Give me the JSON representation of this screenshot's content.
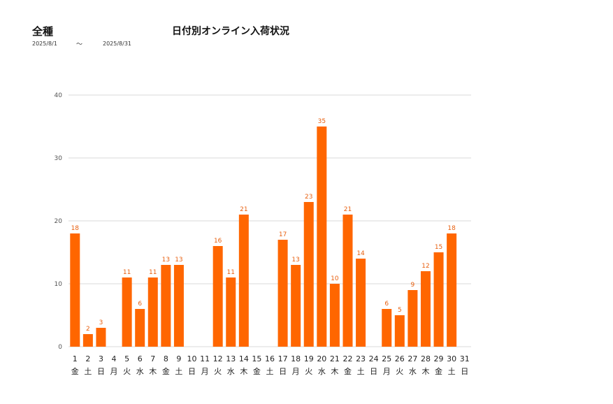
{
  "header": {
    "category": "全種",
    "title": "日付別オンライン入荷状況",
    "date_from": "2025/8/1",
    "date_separator": "～",
    "date_to": "2025/8/31"
  },
  "colors": {
    "bar": "#ff6600",
    "label": "#e86010",
    "grid": "#d9d9d9"
  },
  "chart_data": {
    "type": "bar",
    "title": "日付別オンライン入荷状況",
    "xlabel": "",
    "ylabel": "",
    "ylim": [
      0,
      40
    ],
    "yticks": [
      0,
      10,
      20,
      30,
      40
    ],
    "grid": true,
    "categories": [
      "1",
      "2",
      "3",
      "4",
      "5",
      "6",
      "7",
      "8",
      "9",
      "10",
      "11",
      "12",
      "13",
      "14",
      "15",
      "16",
      "17",
      "18",
      "19",
      "20",
      "21",
      "22",
      "23",
      "24",
      "25",
      "26",
      "27",
      "28",
      "29",
      "30",
      "31"
    ],
    "weekdays": [
      "金",
      "土",
      "日",
      "月",
      "火",
      "水",
      "木",
      "金",
      "土",
      "日",
      "月",
      "火",
      "水",
      "木",
      "金",
      "土",
      "日",
      "月",
      "火",
      "水",
      "木",
      "金",
      "土",
      "日",
      "月",
      "火",
      "水",
      "木",
      "金",
      "土",
      "日"
    ],
    "values": [
      18,
      2,
      3,
      0,
      11,
      6,
      11,
      13,
      13,
      0,
      0,
      16,
      11,
      21,
      0,
      0,
      17,
      13,
      23,
      35,
      10,
      21,
      14,
      0,
      6,
      5,
      9,
      12,
      15,
      18,
      0
    ],
    "show_labels": [
      true,
      true,
      true,
      false,
      true,
      true,
      true,
      true,
      true,
      false,
      false,
      true,
      true,
      true,
      false,
      false,
      true,
      true,
      true,
      true,
      true,
      true,
      true,
      false,
      true,
      true,
      true,
      true,
      true,
      true,
      false
    ]
  }
}
